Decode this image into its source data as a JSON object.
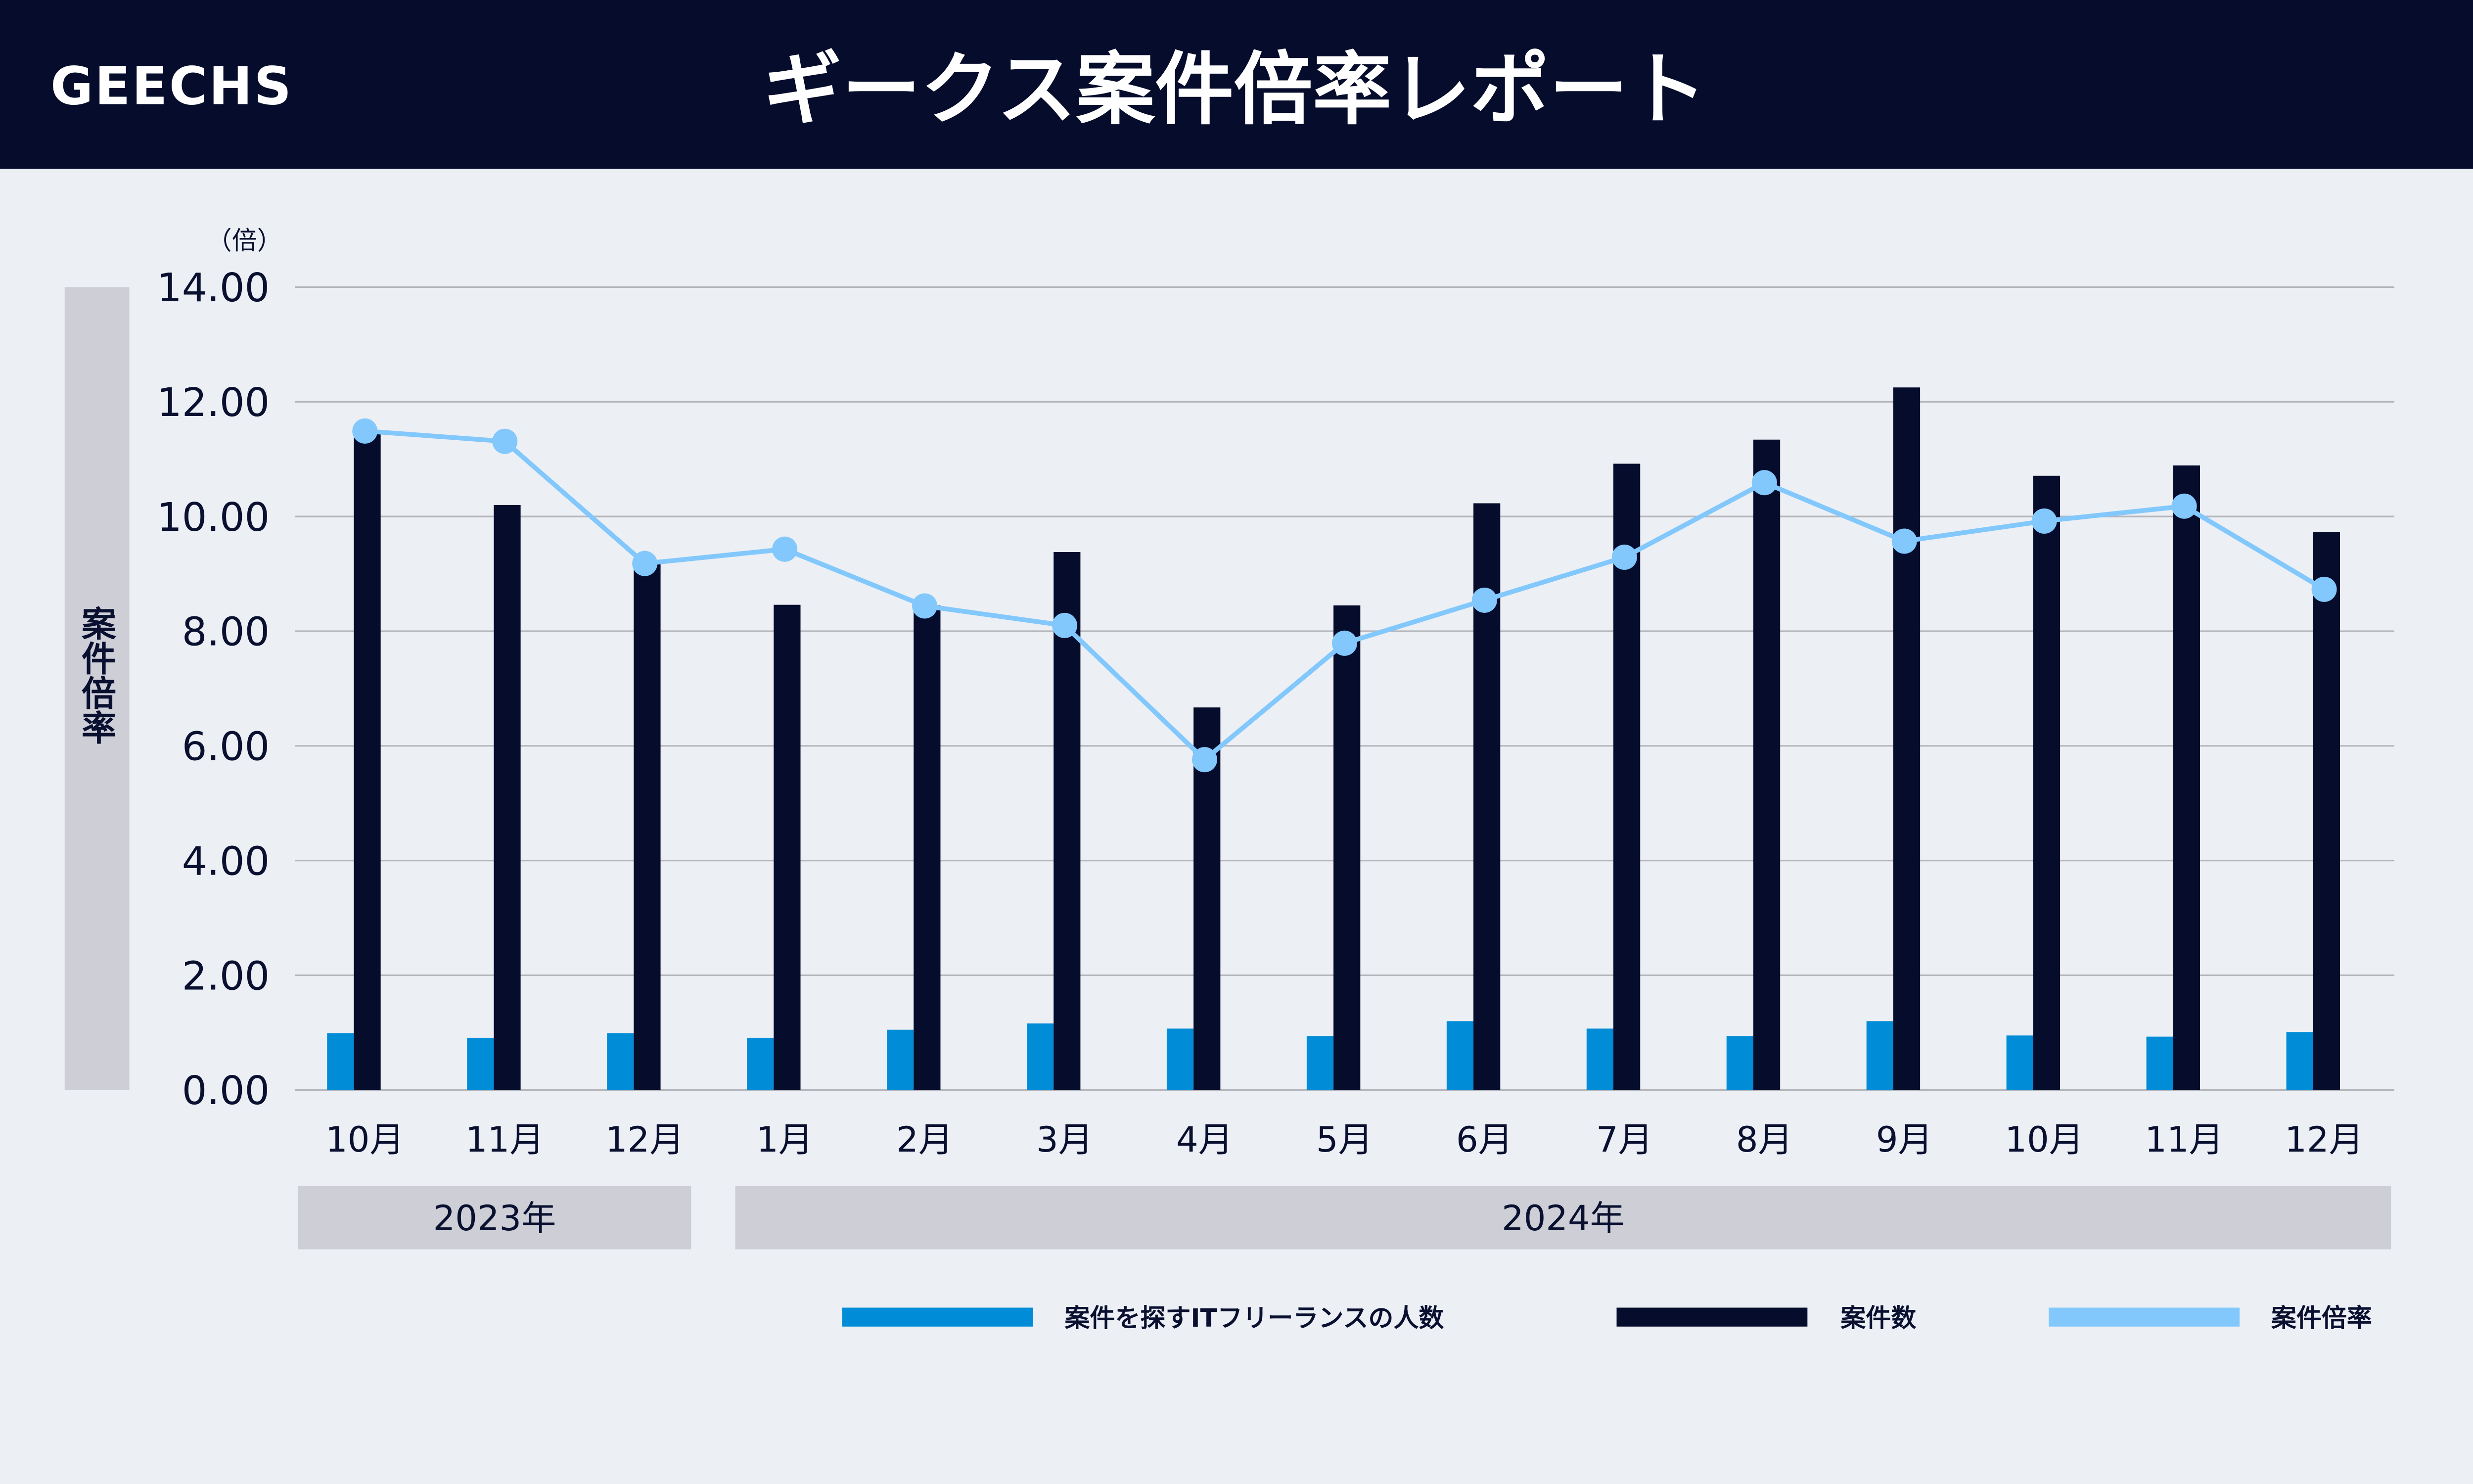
{
  "header": {
    "logo": "GEECHS",
    "title": "ギークス案件倍率レポート"
  },
  "colors": {
    "header_bg": "#050c2c",
    "background": "#eceff4",
    "freelancers": "#008cd6",
    "projects": "#060c2c",
    "ratio": "#82c8fc",
    "band": "#cdced6"
  },
  "chart_data": {
    "type": "bar",
    "ylabel": "案件倍率",
    "yunit": "（倍）",
    "ylim": [
      0,
      14
    ],
    "yticks": [
      "0.00",
      "2.00",
      "4.00",
      "6.00",
      "8.00",
      "10.00",
      "12.00",
      "14.00"
    ],
    "grid": true,
    "legend_position": "bottom",
    "categories": [
      "10月",
      "11月",
      "12月",
      "1月",
      "2月",
      "3月",
      "4月",
      "5月",
      "6月",
      "7月",
      "8月",
      "9月",
      "10月",
      "11月",
      "12月"
    ],
    "year_groups": [
      {
        "label": "2023年",
        "count": 3
      },
      {
        "label": "2024年",
        "count": 12
      }
    ],
    "series": [
      {
        "name": "案件を探すITフリーランスの人数",
        "type": "bar",
        "values": [
          0.99,
          0.91,
          0.99,
          0.91,
          1.05,
          1.16,
          1.07,
          0.94,
          1.2,
          1.07,
          0.94,
          1.2,
          0.95,
          0.93,
          1.01
        ]
      },
      {
        "name": "案件数",
        "type": "bar",
        "values": [
          11.5,
          10.2,
          9.2,
          8.46,
          8.45,
          9.38,
          6.67,
          8.45,
          10.23,
          10.92,
          11.34,
          12.25,
          10.71,
          10.89,
          9.73
        ]
      },
      {
        "name": "案件倍率",
        "type": "line",
        "values": [
          11.49,
          11.31,
          9.18,
          9.43,
          8.44,
          8.1,
          5.76,
          7.79,
          8.54,
          9.29,
          10.59,
          9.57,
          9.92,
          10.18,
          8.73
        ]
      }
    ]
  }
}
